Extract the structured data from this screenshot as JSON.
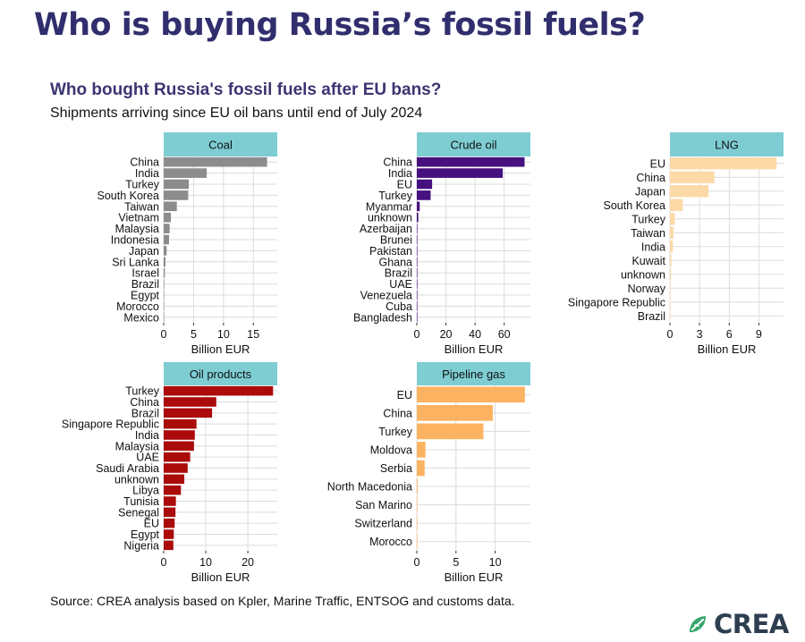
{
  "page": {
    "main_title": "Who is buying Russia’s fossil fuels?",
    "source": "Source: CREA analysis based on Kpler, Marine Traffic, ENTSOG and customs data.",
    "logo_text": "CREA"
  },
  "colors": {
    "title": "#312e6e",
    "strip": "#7dcdd3",
    "grid": "#dcdcdc"
  },
  "chart_data": {
    "type": "bar",
    "title": "Who bought Russia's fossil fuels after EU bans?",
    "subtitle": "Shipments arriving since EU oil bans until end of July 2024",
    "xlabel": "Billion EUR",
    "orientation": "horizontal",
    "panels": [
      {
        "name": "Coal",
        "color": "#8c8c8c",
        "xlim": [
          0,
          19
        ],
        "ticks": [
          0,
          5,
          10,
          15
        ],
        "categories": [
          "China",
          "India",
          "Turkey",
          "South Korea",
          "Taiwan",
          "Vietnam",
          "Malaysia",
          "Indonesia",
          "Japan",
          "Sri Lanka",
          "Israel",
          "Brazil",
          "Egypt",
          "Morocco",
          "Mexico"
        ],
        "values": [
          17.3,
          7.2,
          4.2,
          4.1,
          2.2,
          1.2,
          1.0,
          0.9,
          0.5,
          0.3,
          0.2,
          0.1,
          0.08,
          0.05,
          0.03
        ]
      },
      {
        "name": "Crude oil",
        "color": "#46117f",
        "xlim": [
          0,
          78
        ],
        "ticks": [
          0,
          20,
          40,
          60
        ],
        "categories": [
          "China",
          "India",
          "EU",
          "Turkey",
          "Myanmar",
          "unknown",
          "Azerbaijan",
          "Brunei",
          "Pakistan",
          "Ghana",
          "Brazil",
          "UAE",
          "Venezuela",
          "Cuba",
          "Bangladesh"
        ],
        "values": [
          74,
          59,
          10.5,
          9.5,
          2.0,
          1.0,
          0.3,
          0.3,
          0.3,
          0.2,
          0.2,
          0.2,
          0.1,
          0.1,
          0.05
        ]
      },
      {
        "name": "LNG",
        "color": "#fcd9a7",
        "xlim": [
          0,
          11.5
        ],
        "ticks": [
          0,
          3,
          6,
          9
        ],
        "categories": [
          "EU",
          "China",
          "Japan",
          "South Korea",
          "Turkey",
          "Taiwan",
          "India",
          "Kuwait",
          "unknown",
          "Norway",
          "Singapore Republic",
          "Brazil"
        ],
        "values": [
          10.8,
          4.5,
          3.9,
          1.3,
          0.5,
          0.35,
          0.3,
          0.15,
          0.1,
          0.05,
          0.05,
          0.03
        ]
      },
      {
        "name": "Oil products",
        "color": "#ab0b0b",
        "xlim": [
          0,
          27
        ],
        "ticks": [
          0,
          10,
          20
        ],
        "categories": [
          "Turkey",
          "China",
          "Brazil",
          "Singapore Republic",
          "India",
          "Malaysia",
          "UAE",
          "Saudi Arabia",
          "unknown",
          "Libya",
          "Tunisia",
          "Senegal",
          "EU",
          "Egypt",
          "Nigeria"
        ],
        "values": [
          26,
          12.5,
          11.5,
          7.8,
          7.4,
          7.2,
          6.3,
          5.7,
          4.9,
          4.1,
          2.9,
          2.8,
          2.6,
          2.4,
          2.3
        ]
      },
      {
        "name": "Pipeline gas",
        "color": "#fcb361",
        "xlim": [
          0,
          14.5
        ],
        "ticks": [
          0,
          5,
          10
        ],
        "categories": [
          "EU",
          "China",
          "Turkey",
          "Moldova",
          "Serbia",
          "North Macedonia",
          "San Marino",
          "Switzerland",
          "Morocco"
        ],
        "values": [
          13.8,
          9.7,
          8.5,
          1.1,
          1.0,
          0.1,
          0.03,
          0.02,
          0.01
        ]
      }
    ]
  }
}
